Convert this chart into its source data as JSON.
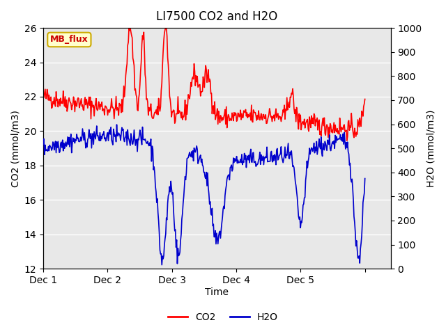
{
  "title": "LI7500 CO2 and H2O",
  "xlabel": "Time",
  "ylabel_left": "CO2 (mmol/m3)",
  "ylabel_right": "H2O (mmol/m3)",
  "ylim_left": [
    12,
    26
  ],
  "ylim_right": [
    0,
    1000
  ],
  "yticks_left": [
    12,
    14,
    16,
    18,
    20,
    22,
    24,
    26
  ],
  "yticks_right": [
    0,
    100,
    200,
    300,
    400,
    500,
    600,
    700,
    800,
    900,
    1000
  ],
  "xtick_labels": [
    "Dec 1",
    "Dec 2",
    "Dec 3",
    "Dec 4",
    "Dec 5"
  ],
  "co2_color": "#ff0000",
  "h2o_color": "#0000cc",
  "background_color": "#ffffff",
  "plot_bg_color": "#e8e8e8",
  "grid_color": "#ffffff",
  "legend_label_co2": "CO2",
  "legend_label_h2o": "H2O",
  "watermark_text": "MB_flux",
  "watermark_bg": "#ffffcc",
  "watermark_border": "#ccaa00",
  "watermark_text_color": "#cc0000",
  "n_points": 500,
  "xlim": [
    0,
    5
  ]
}
